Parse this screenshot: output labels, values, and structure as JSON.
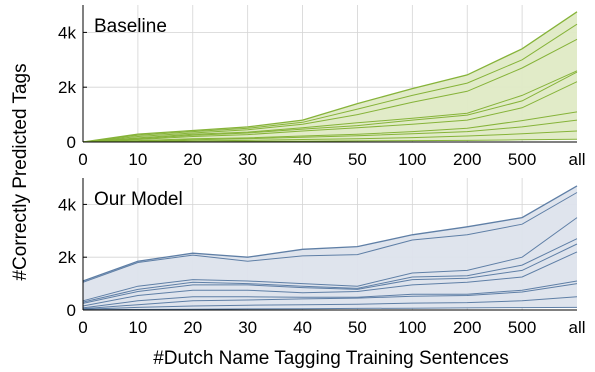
{
  "ylabel": "#Correctly Predicted Tags",
  "xlabel": "#Dutch Name Tagging Training Sentences",
  "colors": {
    "baseline_fill": "#dfeac5",
    "baseline_line": "#86b339",
    "model_fill": "#dde3ec",
    "model_line": "#5f7fa6",
    "grid": "#d4d4d4"
  },
  "chart_data": [
    {
      "type": "area",
      "title": "Baseline",
      "categories": [
        "0",
        "10",
        "20",
        "30",
        "40",
        "50",
        "100",
        "200",
        "500",
        "all"
      ],
      "yticks": [
        0,
        2000,
        4000
      ],
      "ytick_labels": [
        "0",
        "2k",
        "4k"
      ],
      "ylim": [
        0,
        5000
      ],
      "grid": true,
      "series": [
        {
          "values": [
            0,
            290,
            420,
            550,
            800,
            1400,
            1950,
            2450,
            3400,
            4750
          ]
        },
        {
          "values": [
            0,
            250,
            380,
            500,
            720,
            1200,
            1700,
            2150,
            3000,
            4300
          ]
        },
        {
          "values": [
            0,
            200,
            330,
            450,
            650,
            1000,
            1450,
            1850,
            2700,
            3750
          ]
        },
        {
          "values": [
            0,
            150,
            280,
            360,
            520,
            700,
            870,
            1050,
            1700,
            2600
          ]
        },
        {
          "values": [
            0,
            120,
            250,
            330,
            470,
            600,
            800,
            980,
            1500,
            2550
          ]
        },
        {
          "values": [
            0,
            90,
            200,
            270,
            400,
            520,
            650,
            800,
            1250,
            2200
          ]
        },
        {
          "values": [
            0,
            50,
            120,
            150,
            220,
            280,
            380,
            500,
            780,
            1100
          ]
        },
        {
          "values": [
            0,
            30,
            80,
            120,
            170,
            230,
            300,
            380,
            550,
            800
          ]
        },
        {
          "values": [
            0,
            20,
            40,
            60,
            90,
            120,
            160,
            220,
            300,
            400
          ]
        },
        {
          "values": [
            0,
            5,
            10,
            20,
            30,
            40,
            50,
            60,
            80,
            100
          ]
        }
      ]
    },
    {
      "type": "area",
      "title": "Our Model",
      "categories": [
        "0",
        "10",
        "20",
        "30",
        "40",
        "50",
        "100",
        "200",
        "500",
        "all"
      ],
      "yticks": [
        0,
        2000,
        4000
      ],
      "ytick_labels": [
        "0",
        "2k",
        "4k"
      ],
      "ylim": [
        0,
        5000
      ],
      "grid": true,
      "series": [
        {
          "values": [
            1100,
            1850,
            2150,
            2000,
            2300,
            2400,
            2850,
            3150,
            3500,
            4700
          ]
        },
        {
          "values": [
            1050,
            1800,
            2080,
            1850,
            2050,
            2100,
            2650,
            2850,
            3250,
            4450
          ]
        },
        {
          "values": [
            350,
            900,
            1150,
            1100,
            1000,
            900,
            1400,
            1500,
            2000,
            3500
          ]
        },
        {
          "values": [
            300,
            780,
            1050,
            1000,
            900,
            820,
            1250,
            1300,
            1700,
            2700
          ]
        },
        {
          "values": [
            250,
            700,
            950,
            950,
            850,
            780,
            1150,
            1200,
            1500,
            2500
          ]
        },
        {
          "values": [
            150,
            550,
            750,
            750,
            650,
            700,
            950,
            1050,
            1250,
            2200
          ]
        },
        {
          "values": [
            80,
            350,
            500,
            500,
            480,
            480,
            600,
            600,
            750,
            1100
          ]
        },
        {
          "values": [
            50,
            200,
            350,
            380,
            420,
            450,
            520,
            550,
            680,
            1000
          ]
        },
        {
          "values": [
            30,
            100,
            150,
            180,
            200,
            220,
            260,
            280,
            350,
            500
          ]
        },
        {
          "values": [
            10,
            20,
            30,
            40,
            50,
            60,
            70,
            80,
            90,
            100
          ]
        }
      ]
    }
  ]
}
